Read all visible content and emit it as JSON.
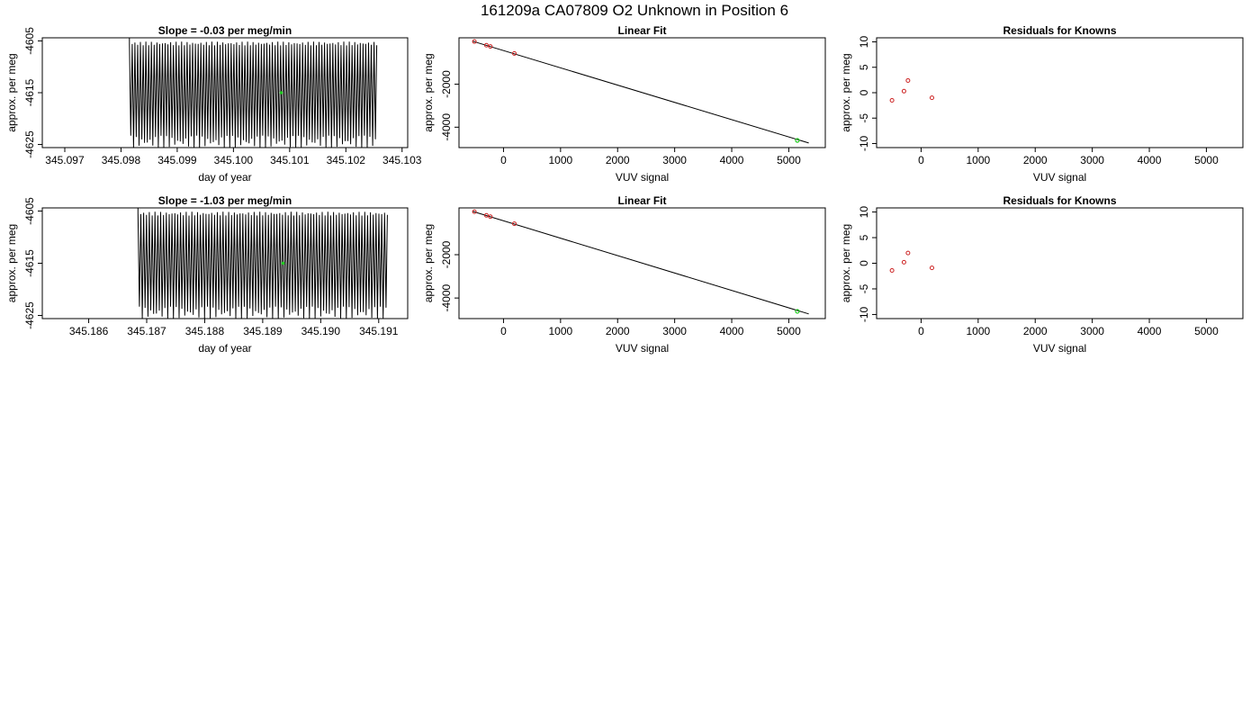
{
  "page_title": "161209a     CA07809   O2 Unknown in Position  6",
  "colors": {
    "trace": "#000000",
    "known_points": "#cc2222",
    "unknown_point": "#22cc22",
    "frame": "#000000"
  },
  "chart_data": [
    {
      "type": "line",
      "title": "Slope =  -0.03  per meg/min",
      "xlabel": "day of year",
      "ylabel": "approx. per meg",
      "xlim": [
        345.0966,
        345.1031
      ],
      "ylim": [
        -4625.6,
        -4604.4
      ],
      "x_ticks": [
        "345.097",
        "345.098",
        "345.099",
        "345.100",
        "345.101",
        "345.102",
        "345.103"
      ],
      "y_ticks": [
        "-4605",
        "-4615",
        "-4625"
      ],
      "series": [
        {
          "values_description_type": "oscillating",
          "x_start": 345.09815,
          "x_end": 345.10255,
          "cycles": 90,
          "ymin": -4624.5,
          "ymax": -4605.5
        }
      ],
      "unknown_point": {
        "x": 345.10085,
        "y": -4615.0
      }
    },
    {
      "type": "scatter",
      "title": "Linear Fit",
      "xlabel": "VUV signal",
      "ylabel": "approx. per meg",
      "xlim": [
        -780,
        5640
      ],
      "ylim": [
        -4950,
        160
      ],
      "x_ticks": [
        "0",
        "1000",
        "2000",
        "3000",
        "4000",
        "5000"
      ],
      "y_ticks": [
        "-2000",
        "-4000"
      ],
      "fit_line": {
        "x1": -540,
        "y1": 0,
        "x2": 5350,
        "y2": -4735
      },
      "known_points": [
        {
          "x": -510,
          "y": -15
        },
        {
          "x": -300,
          "y": -185
        },
        {
          "x": -230,
          "y": -245
        },
        {
          "x": 190,
          "y": -570
        }
      ],
      "unknown_point": {
        "x": 5150,
        "y": -4615
      }
    },
    {
      "type": "scatter",
      "title": "Residuals for Knowns",
      "xlabel": "VUV signal",
      "ylabel": "approx. per meg",
      "xlim": [
        -780,
        5640
      ],
      "ylim": [
        -10.8,
        10.8
      ],
      "x_ticks": [
        "0",
        "1000",
        "2000",
        "3000",
        "4000",
        "5000"
      ],
      "y_ticks": [
        "10",
        "5",
        "0",
        "-5",
        "-10"
      ],
      "known_points": [
        {
          "x": -510,
          "y": -1.5
        },
        {
          "x": -300,
          "y": 0.3
        },
        {
          "x": -230,
          "y": 2.4
        },
        {
          "x": 190,
          "y": -1.0
        }
      ]
    },
    {
      "type": "line",
      "title": "Slope =  -1.03  per meg/min",
      "xlabel": "day of year",
      "ylabel": "approx. per meg",
      "xlim": [
        345.1852,
        345.1915
      ],
      "ylim": [
        -4625.6,
        -4604.4
      ],
      "x_ticks": [
        "345.186",
        "345.187",
        "345.188",
        "345.189",
        "345.190",
        "345.191"
      ],
      "y_ticks": [
        "-4605",
        "-4615",
        "-4625"
      ],
      "series": [
        {
          "values_description_type": "oscillating",
          "x_start": 345.18685,
          "x_end": 345.19115,
          "cycles": 88,
          "ymin": -4624.5,
          "ymax": -4605.5
        }
      ],
      "unknown_point": {
        "x": 345.18935,
        "y": -4615.0
      }
    },
    {
      "type": "scatter",
      "title": "Linear Fit",
      "xlabel": "VUV signal",
      "ylabel": "approx. per meg",
      "xlim": [
        -780,
        5640
      ],
      "ylim": [
        -4950,
        160
      ],
      "x_ticks": [
        "0",
        "1000",
        "2000",
        "3000",
        "4000",
        "5000"
      ],
      "y_ticks": [
        "-2000",
        "-4000"
      ],
      "fit_line": {
        "x1": -540,
        "y1": 0,
        "x2": 5350,
        "y2": -4735
      },
      "known_points": [
        {
          "x": -510,
          "y": -15
        },
        {
          "x": -300,
          "y": -185
        },
        {
          "x": -230,
          "y": -245
        },
        {
          "x": 190,
          "y": -570
        }
      ],
      "unknown_point": {
        "x": 5150,
        "y": -4615
      }
    },
    {
      "type": "scatter",
      "title": "Residuals for Knowns",
      "xlabel": "VUV signal",
      "ylabel": "approx. per meg",
      "xlim": [
        -780,
        5640
      ],
      "ylim": [
        -10.8,
        10.8
      ],
      "x_ticks": [
        "0",
        "1000",
        "2000",
        "3000",
        "4000",
        "5000"
      ],
      "y_ticks": [
        "10",
        "5",
        "0",
        "-5",
        "-10"
      ],
      "known_points": [
        {
          "x": -510,
          "y": -1.4
        },
        {
          "x": -300,
          "y": 0.2
        },
        {
          "x": -230,
          "y": 2.0
        },
        {
          "x": 190,
          "y": -0.9
        }
      ]
    }
  ]
}
